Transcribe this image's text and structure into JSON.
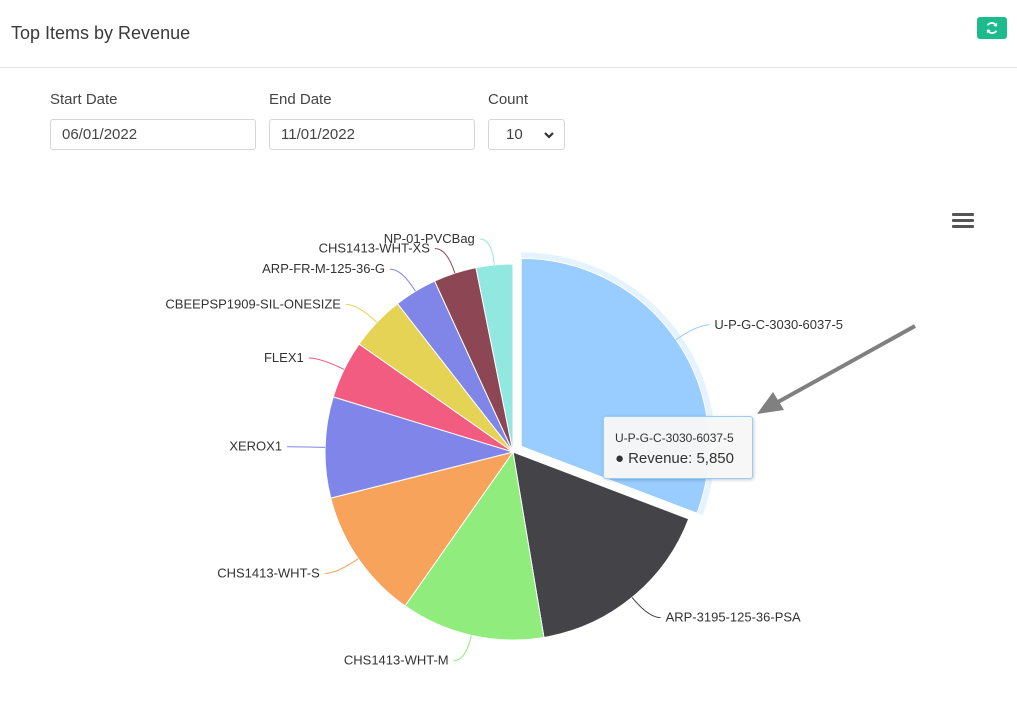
{
  "header": {
    "title": "Top Items by Revenue",
    "refresh_icon": "refresh-icon",
    "accent": "#1cbb8c"
  },
  "filters": {
    "start_label": "Start Date",
    "start_value": "06/01/2022",
    "end_label": "End Date",
    "end_value": "11/01/2022",
    "count_label": "Count",
    "count_value": "10"
  },
  "chart_menu_icon": "hamburger-menu-icon",
  "tooltip": {
    "name": "U-P-G-C-3030-6037-5",
    "series": "Revenue",
    "value": "5,850"
  },
  "chart_data": {
    "type": "pie",
    "title": "",
    "series_name": "Revenue",
    "selected": "U-P-G-C-3030-6037-5",
    "slices": [
      {
        "name": "U-P-G-C-3030-6037-5",
        "value": 5850,
        "color": "#99ccff"
      },
      {
        "name": "ARP-3195-125-36-PSA",
        "value": 3150,
        "color": "#434348"
      },
      {
        "name": "CHS1413-WHT-M",
        "value": 2350,
        "color": "#90ed7d"
      },
      {
        "name": "CHS1413-WHT-S",
        "value": 2150,
        "color": "#f7a35c"
      },
      {
        "name": "XEROX1",
        "value": 1650,
        "color": "#8085e9"
      },
      {
        "name": "FLEX1",
        "value": 950,
        "color": "#f15c80"
      },
      {
        "name": "CBEEPSP1909-SIL-ONESIZE",
        "value": 900,
        "color": "#e4d354"
      },
      {
        "name": "ARP-FR-M-125-36-G",
        "value": 700,
        "color": "#8085e8"
      },
      {
        "name": "CHS1413-WHT-XS",
        "value": 700,
        "color": "#8d4653"
      },
      {
        "name": "NP-01-PVCBag",
        "value": 600,
        "color": "#91e8e1"
      }
    ]
  }
}
